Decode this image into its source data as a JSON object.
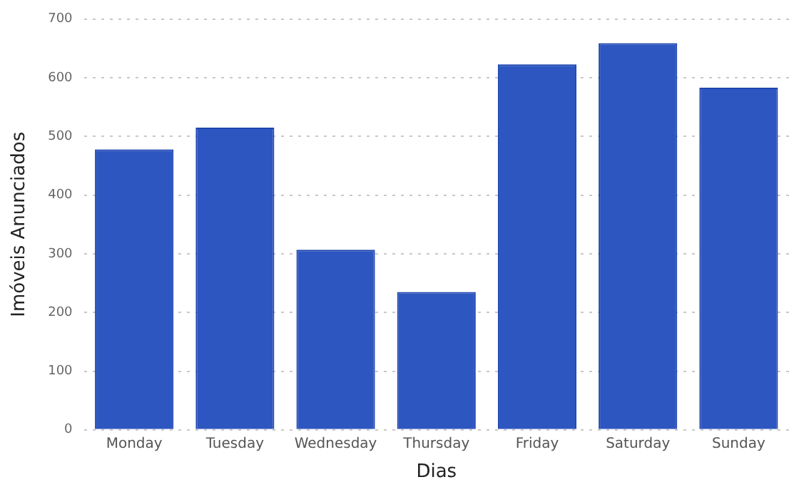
{
  "chart_data": {
    "type": "bar",
    "xlabel": "Dias",
    "ylabel": "Imóveis Anunciados",
    "categories": [
      "Monday",
      "Tuesday",
      "Wednesday",
      "Thursday",
      "Friday",
      "Saturday",
      "Sunday"
    ],
    "values": [
      478,
      515,
      307,
      235,
      623,
      659,
      583
    ],
    "color": "#2e56c0",
    "ylim": [
      0,
      700
    ],
    "yticks": [
      0,
      100,
      200,
      300,
      400,
      500,
      600,
      700
    ],
    "grid": "y",
    "legend": false
  }
}
